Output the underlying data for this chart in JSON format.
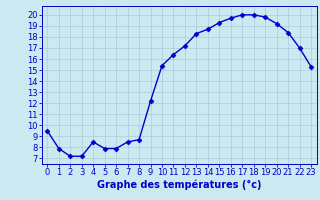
{
  "hours": [
    0,
    1,
    2,
    3,
    4,
    5,
    6,
    7,
    8,
    9,
    10,
    11,
    12,
    13,
    14,
    15,
    16,
    17,
    18,
    19,
    20,
    21,
    22,
    23
  ],
  "temperatures": [
    9.5,
    7.9,
    7.2,
    7.2,
    8.5,
    7.9,
    7.9,
    8.5,
    8.7,
    12.2,
    15.4,
    16.4,
    17.2,
    18.3,
    18.7,
    19.3,
    19.7,
    20.0,
    20.0,
    19.8,
    19.2,
    18.4,
    17.0,
    15.3
  ],
  "line_color": "#0000cc",
  "marker": "D",
  "markersize": 2.5,
  "linewidth": 1.0,
  "background_color": "#cce8f0",
  "grid_color": "#aaccdd",
  "xlabel": "Graphe des températures (°c)",
  "xlabel_color": "#0000cc",
  "xlabel_fontsize": 7,
  "tick_color": "#0000cc",
  "tick_fontsize": 6,
  "ylim": [
    6.5,
    20.8
  ],
  "xlim": [
    -0.5,
    23.5
  ],
  "yticks": [
    7,
    8,
    9,
    10,
    11,
    12,
    13,
    14,
    15,
    16,
    17,
    18,
    19,
    20
  ],
  "xticks": [
    0,
    1,
    2,
    3,
    4,
    5,
    6,
    7,
    8,
    9,
    10,
    11,
    12,
    13,
    14,
    15,
    16,
    17,
    18,
    19,
    20,
    21,
    22,
    23
  ]
}
